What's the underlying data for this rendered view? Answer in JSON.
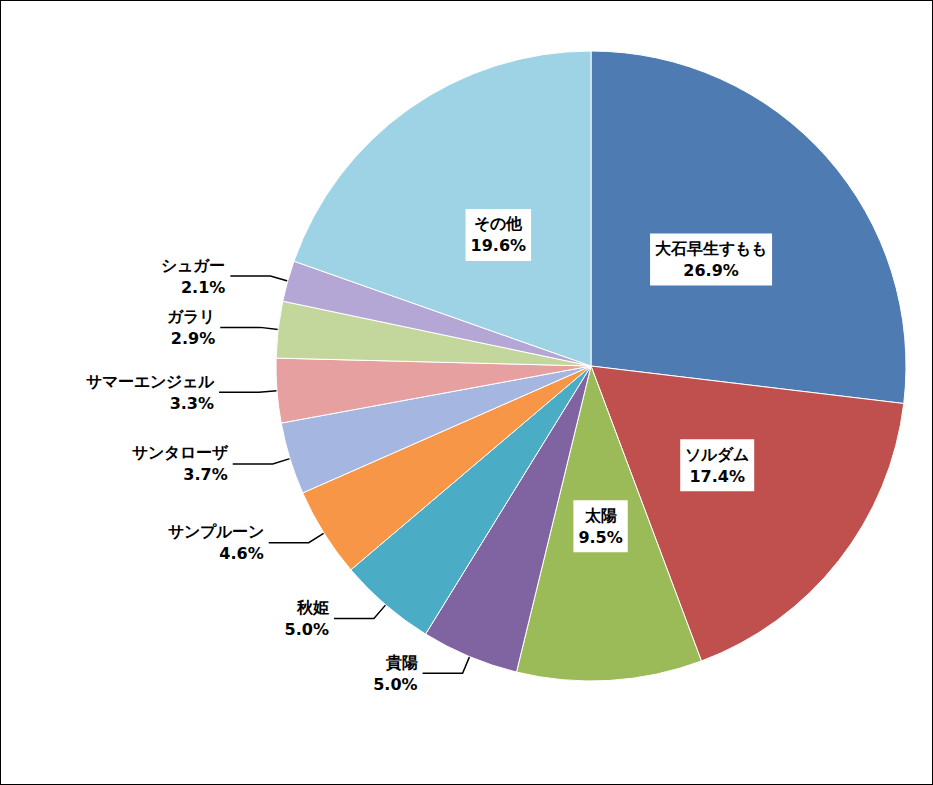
{
  "chart_data": {
    "type": "pie",
    "categories": [
      "大石早生すもも",
      "ソルダム",
      "太陽",
      "貴陽",
      "秋姫",
      "サンプルーン",
      "サンタローザ",
      "サマーエンジェル",
      "ガラリ",
      "シュガー",
      "その他"
    ],
    "values": [
      26.9,
      17.4,
      9.5,
      5.0,
      5.0,
      4.6,
      3.7,
      3.3,
      2.9,
      2.1,
      19.6
    ],
    "value_labels": [
      "26.9%",
      "17.4%",
      "9.5%",
      "5.0%",
      "5.0%",
      "4.6%",
      "3.7%",
      "3.3%",
      "2.9%",
      "2.1%",
      "19.6%"
    ],
    "colors": [
      "#4f7bb3",
      "#c0504d",
      "#9bbb59",
      "#8064a2",
      "#4bacc6",
      "#f79646",
      "#a5b6e0",
      "#e6a0a0",
      "#c3d69b",
      "#b4a7d6",
      "#9dd3e5"
    ],
    "data_labels": true
  }
}
